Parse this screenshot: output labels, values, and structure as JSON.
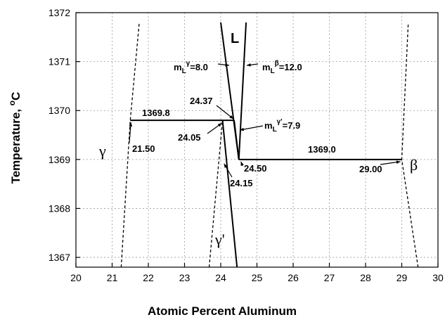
{
  "chart_data": {
    "type": "line",
    "title": "",
    "xlabel": "Atomic Percent Aluminum",
    "ylabel_main": "Temperature, ",
    "ylabel_sup": "o",
    "ylabel_unit": "C",
    "xlim": [
      20,
      30
    ],
    "ylim": [
      1366.8,
      1372
    ],
    "x_ticks": [
      "20",
      "21",
      "22",
      "23",
      "24",
      "25",
      "26",
      "27",
      "28",
      "29",
      "30"
    ],
    "y_ticks": [
      "1367",
      "1368",
      "1369",
      "1370",
      "1371",
      "1372"
    ],
    "grid": true,
    "legend": "none",
    "series": [
      {
        "style": "dashed",
        "x": [
          21.25,
          21.5,
          21.75
        ],
        "y": [
          1366.8,
          1369.8,
          1371.8
        ]
      },
      {
        "style": "dashed",
        "x": [
          23.68,
          24.05
        ],
        "y": [
          1366.8,
          1369.8
        ]
      },
      {
        "style": "dashed",
        "x": [
          29.45,
          29.0,
          29.18
        ],
        "y": [
          1366.8,
          1369.0,
          1371.8
        ]
      },
      {
        "style": "solid",
        "x": [
          21.5,
          24.37
        ],
        "y": [
          1369.8,
          1369.8
        ]
      },
      {
        "style": "solid",
        "x": [
          24.5,
          29.0
        ],
        "y": [
          1369.0,
          1369.0
        ]
      },
      {
        "style": "solid",
        "x": [
          24.05,
          24.45
        ],
        "y": [
          1369.8,
          1366.8
        ]
      },
      {
        "style": "solid",
        "x": [
          24.5,
          24.0
        ],
        "y": [
          1369.0,
          1371.8
        ]
      },
      {
        "style": "solid",
        "x": [
          24.5,
          24.7
        ],
        "y": [
          1369.0,
          1371.8
        ]
      },
      {
        "style": "solid",
        "x": [
          24.37,
          24.5
        ],
        "y": [
          1369.8,
          1369.0
        ]
      }
    ],
    "annotations": {
      "eutectic_upper": "1369.8",
      "eutectic_lower": "1369.0",
      "comp_2150": "21.50",
      "comp_2405": "24.05",
      "comp_2437": "24.37",
      "comp_2450": "24.50",
      "comp_2415": "24.15",
      "comp_2900": "29.00",
      "slope_gamma": "m",
      "slope_gamma_sub": "L",
      "slope_gamma_sup": "γ",
      "slope_gamma_val": "=8.0",
      "slope_beta": "m",
      "slope_beta_sub": "L",
      "slope_beta_sup": "β",
      "slope_beta_val": "=12.0",
      "slope_gp": "m",
      "slope_gp_sub": "L",
      "slope_gp_sup": "γ'",
      "slope_gp_val": "=7.9",
      "phase_gamma": "γ",
      "phase_beta": "β",
      "phase_L": "L",
      "phase_gammaprime": "γ'"
    }
  }
}
